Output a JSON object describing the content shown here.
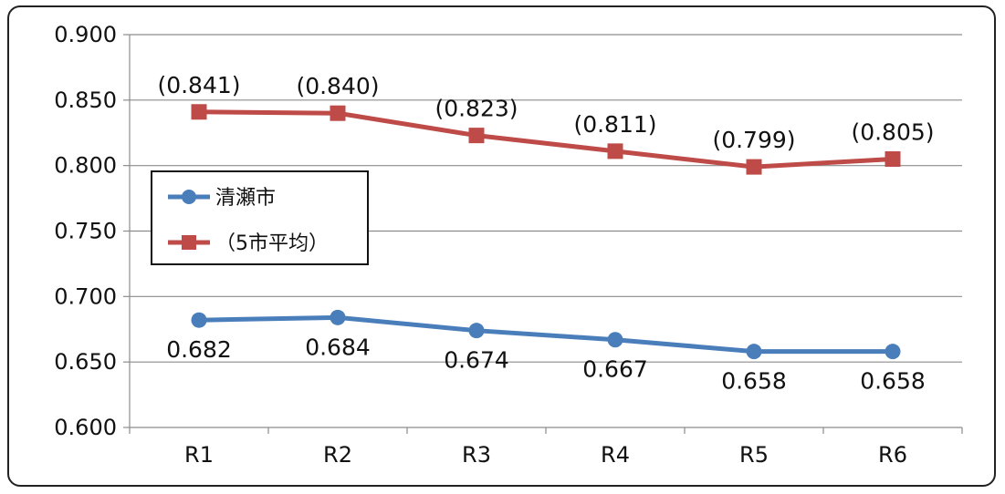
{
  "chart_data": {
    "type": "line",
    "title": "",
    "xlabel": "",
    "ylabel": "",
    "categories": [
      "R1",
      "R2",
      "R3",
      "R4",
      "R5",
      "R6"
    ],
    "ylim": [
      0.6,
      0.9
    ],
    "yticks": [
      "0.600",
      "0.650",
      "0.700",
      "0.750",
      "0.800",
      "0.850",
      "0.900"
    ],
    "grid": true,
    "legend_position": "left",
    "series": [
      {
        "name": "清瀬市",
        "values": [
          0.682,
          0.684,
          0.674,
          0.667,
          0.658,
          0.658
        ],
        "labels": [
          "0.682",
          "0.684",
          "0.674",
          "0.667",
          "0.658",
          "0.658"
        ],
        "color": "#4a7ebb",
        "marker": "circle"
      },
      {
        "name": "（5市平均）",
        "values": [
          0.841,
          0.84,
          0.823,
          0.811,
          0.799,
          0.805
        ],
        "labels": [
          "(0.841)",
          "(0.840)",
          "(0.823)",
          "(0.811)",
          "(0.799)",
          "(0.805)"
        ],
        "color": "#be4b48",
        "marker": "square"
      }
    ]
  }
}
